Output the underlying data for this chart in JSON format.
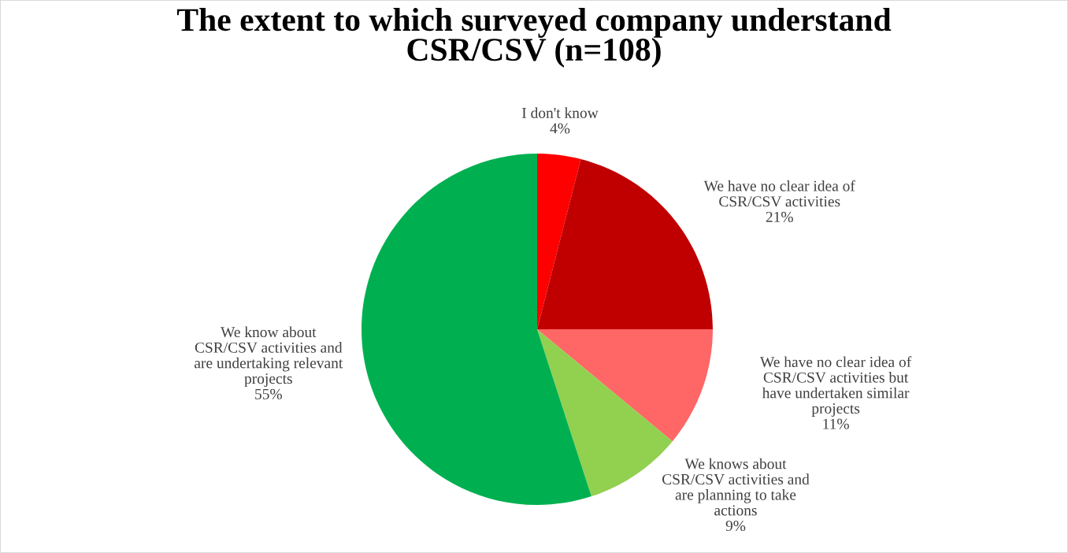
{
  "chart_data": {
    "type": "pie",
    "title": "The extent to which surveyed company understand\nCSR/CSV (n=108)",
    "categories": [
      "I don't know",
      "We have no clear idea of\nCSR/CSV activities",
      "We have no clear idea of\nCSR/CSV activities but\nhave undertaken similar\nprojects",
      "We knows about\nCSR/CSV activities and\nare planning to take\nactions",
      "We know about\nCSR/CSV activities and\nare undertaking relevant\nprojects"
    ],
    "values": [
      4,
      21,
      11,
      9,
      55
    ],
    "colors": [
      "#ff0000",
      "#c00000",
      "#ff6666",
      "#92d050",
      "#00b050"
    ],
    "value_labels": [
      "4%",
      "21%",
      "11%",
      "9%",
      "55%"
    ]
  }
}
